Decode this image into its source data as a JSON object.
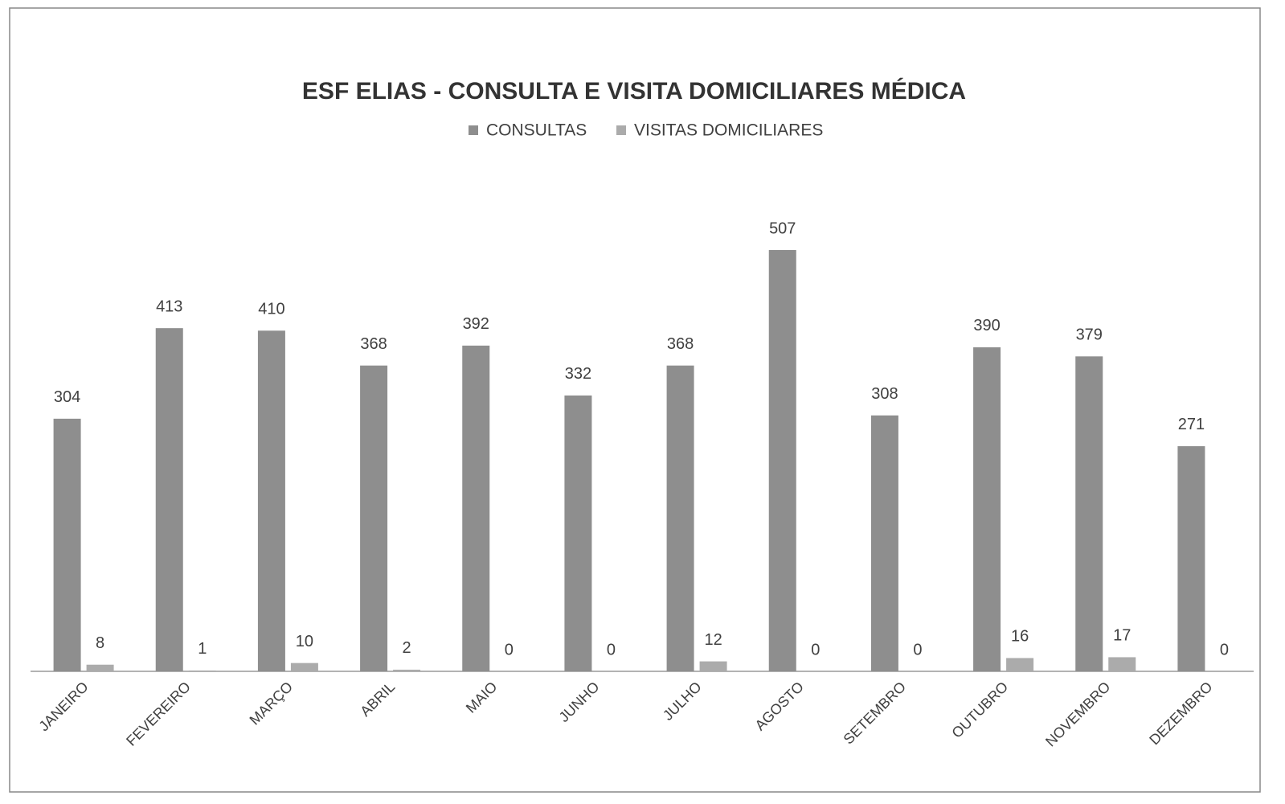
{
  "chart_data": {
    "type": "bar",
    "title": "ESF ELIAS - CONSULTA E VISITA DOMICILIARES MÉDICA",
    "categories": [
      "JANEIRO",
      "FEVEREIRO",
      "MARÇO",
      "ABRIL",
      "MAIO",
      "JUNHO",
      "JULHO",
      "AGOSTO",
      "SETEMBRO",
      "OUTUBRO",
      "NOVEMBRO",
      "DEZEMBRO"
    ],
    "series": [
      {
        "name": "CONSULTAS",
        "color": "#8e8e8e",
        "values": [
          304,
          413,
          410,
          368,
          392,
          332,
          368,
          507,
          308,
          390,
          379,
          271
        ]
      },
      {
        "name": "VISITAS DOMICILIARES",
        "color": "#ababab",
        "values": [
          8,
          1,
          10,
          2,
          0,
          0,
          12,
          0,
          0,
          16,
          17,
          0
        ]
      }
    ],
    "legend": "top"
  }
}
